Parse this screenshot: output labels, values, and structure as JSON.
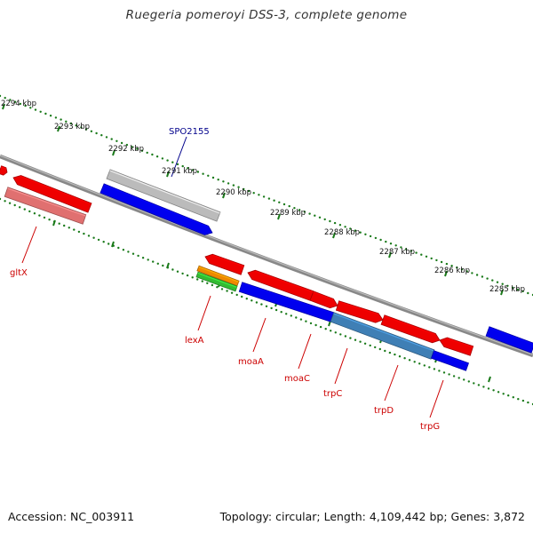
{
  "title": "Ruegeria pomeroyi DSS-3, complete genome",
  "footer": {
    "accession": "Accession: NC_003911",
    "summary": "Topology: circular; Length: 4,109,442 bp; Genes: 3,872"
  },
  "scale": {
    "ticks": [
      "2294 kbp",
      "2293 kbp",
      "2292 kbp",
      "2291 kbp",
      "2290 kbp",
      "2289 kbp",
      "2288 kbp",
      "2287 kbp",
      "2286 kbp",
      "2285 kbp"
    ]
  },
  "highlighted_gene": "SPO2155",
  "gene_labels": [
    "gltX",
    "lexA",
    "moaA",
    "moaC",
    "trpC",
    "trpD",
    "trpG"
  ],
  "colors": {
    "backbone": "#888888",
    "tick": "#1a7a1a",
    "gene_red": "#ee0000",
    "gene_blue": "#0000ee",
    "gene_grey": "#bbbbbb",
    "gene_steel": "#3f7fb5",
    "gene_pink": "#e07070",
    "gene_orange": "#ee8800",
    "gene_green": "#33bb33",
    "label_red": "#cc0000",
    "label_blue": "#00008b"
  }
}
